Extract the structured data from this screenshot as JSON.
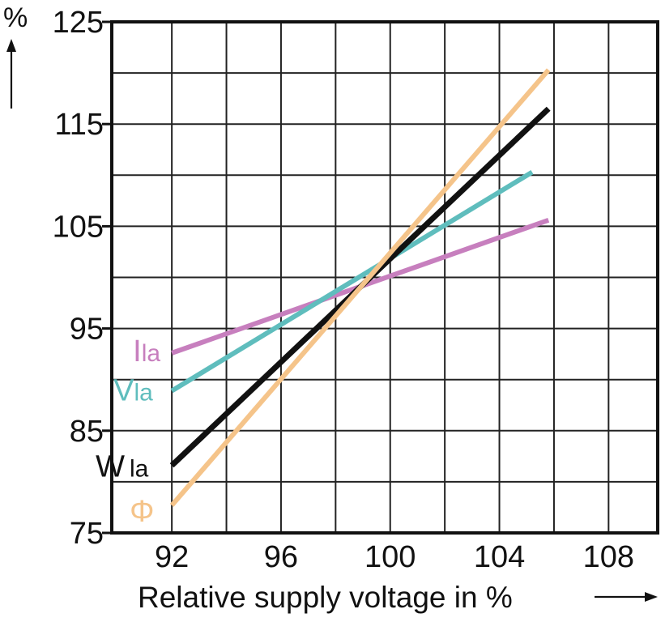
{
  "chart_data": {
    "type": "line",
    "title": "",
    "xlabel": "Relative supply voltage in %",
    "ylabel": "%",
    "xlim": [
      89.8,
      109.8
    ],
    "ylim": [
      75,
      125
    ],
    "x_ticks": [
      92,
      96,
      100,
      104,
      108
    ],
    "y_ticks": [
      75,
      85,
      95,
      105,
      115,
      125
    ],
    "x_tick_labels": [
      "92",
      "96",
      "100",
      "104",
      "108"
    ],
    "y_tick_labels": [
      "75",
      "85",
      "95",
      "105",
      "115",
      "125"
    ],
    "grid": true,
    "series": [
      {
        "name": "Ila",
        "label_main": "I",
        "label_sub": "la",
        "color": "#c77fbe",
        "x": [
          92,
          105.8
        ],
        "y": [
          92.6,
          105.6
        ]
      },
      {
        "name": "Vla",
        "label_main": "V",
        "label_sub": "la",
        "color": "#5fbdbd",
        "x": [
          92,
          105.2
        ],
        "y": [
          88.9,
          110.3
        ]
      },
      {
        "name": "Wla",
        "label_main": "W",
        "label_sub": "la",
        "color": "#111111",
        "x": [
          92,
          105.8
        ],
        "y": [
          81.6,
          116.5
        ]
      },
      {
        "name": "Φ",
        "label_main": "Φ",
        "label_sub": "",
        "color": "#f5c48a",
        "x": [
          92,
          105.8
        ],
        "y": [
          77.7,
          120.3
        ]
      }
    ]
  }
}
